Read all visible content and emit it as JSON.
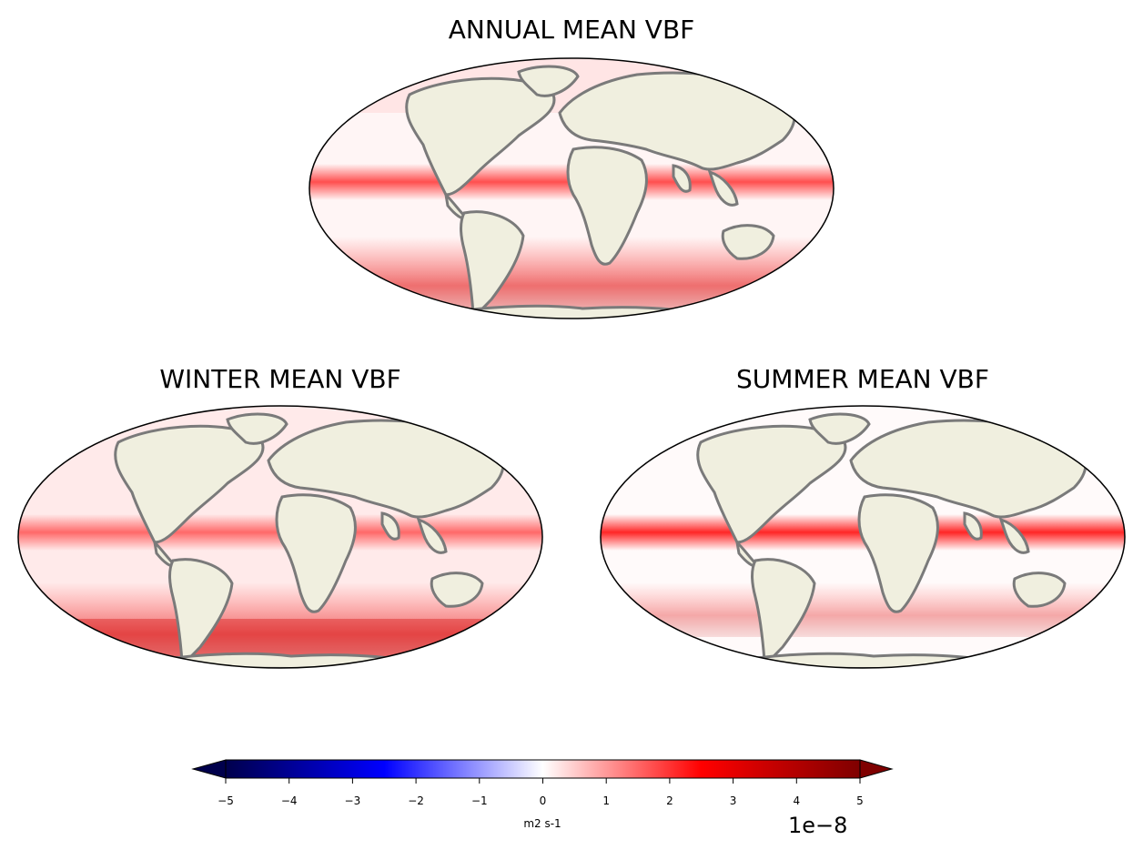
{
  "panels": [
    {
      "id": "annual",
      "title": "ANNUAL MEAN VBF"
    },
    {
      "id": "winter",
      "title": "WINTER MEAN VBF"
    },
    {
      "id": "summer",
      "title": "SUMMER MEAN VBF"
    }
  ],
  "colorbar": {
    "ticks": [
      "−5",
      "−4",
      "−3",
      "−2",
      "−1",
      "0",
      "1",
      "2",
      "3",
      "4",
      "5"
    ],
    "unit": "m2 s-1",
    "scale": "1e−8",
    "colormap": "seismic",
    "colors": {
      "min": "#00004c",
      "neg": "#0000ff",
      "mid": "#ffffff",
      "pos": "#ff0000",
      "max": "#7f0000"
    }
  },
  "colors": {
    "land": "#f0efdf",
    "coast": "#7a7a7a",
    "border": "#000000"
  }
}
